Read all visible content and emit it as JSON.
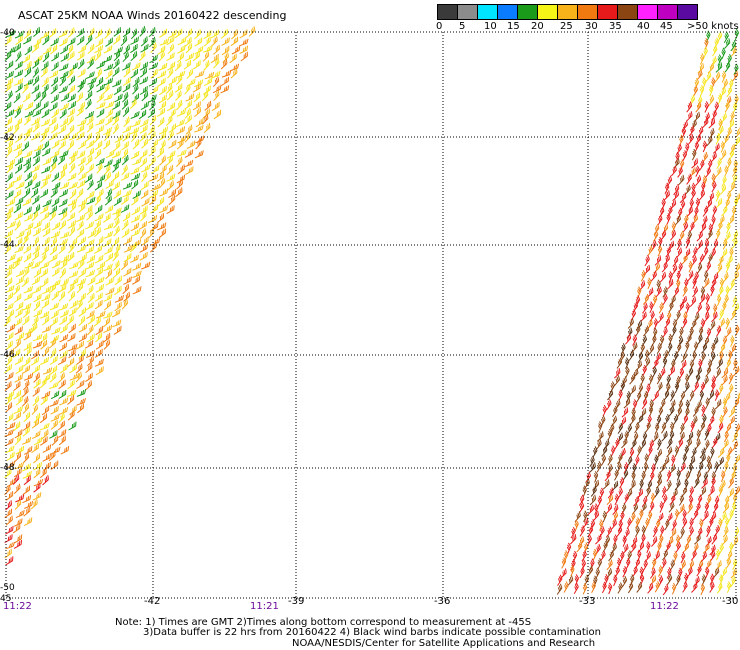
{
  "title": "ASCAT 25KM NOAA Winds 20160422 descending",
  "color_scale": {
    "labels": [
      "0",
      "5",
      "10",
      "15",
      "20",
      "25",
      "30",
      "35",
      "40",
      "45",
      ">50 knots"
    ],
    "colors": [
      "#3a3a3a",
      "#8c8c8c",
      "#00e5ff",
      "#0a7cff",
      "#1a9b1a",
      "#f5f518",
      "#f8b21a",
      "#f07a10",
      "#e61a1a",
      "#8b4513",
      "#ff22ff",
      "#c000c0",
      "#5a0aa0"
    ]
  },
  "map": {
    "lat_labels": [
      "-40",
      "-42",
      "-44",
      "-46",
      "-48",
      "-50"
    ],
    "corner_label": "45",
    "lon_labels": [
      "-42",
      "-39",
      "-36",
      "-33",
      "-30"
    ],
    "time_labels": [
      "11:22",
      "11:21",
      "11:22"
    ]
  },
  "notes": {
    "line1": "Note: 1) Times are GMT 2)Times along bottom correspond to measurement at -45S",
    "line2": "3)Data buffer is 22 hrs from 20160422 4) Black wind barbs indicate possible contamination",
    "line3": "NOAA/NESDIS/Center for Satellite Applications and Research"
  }
}
